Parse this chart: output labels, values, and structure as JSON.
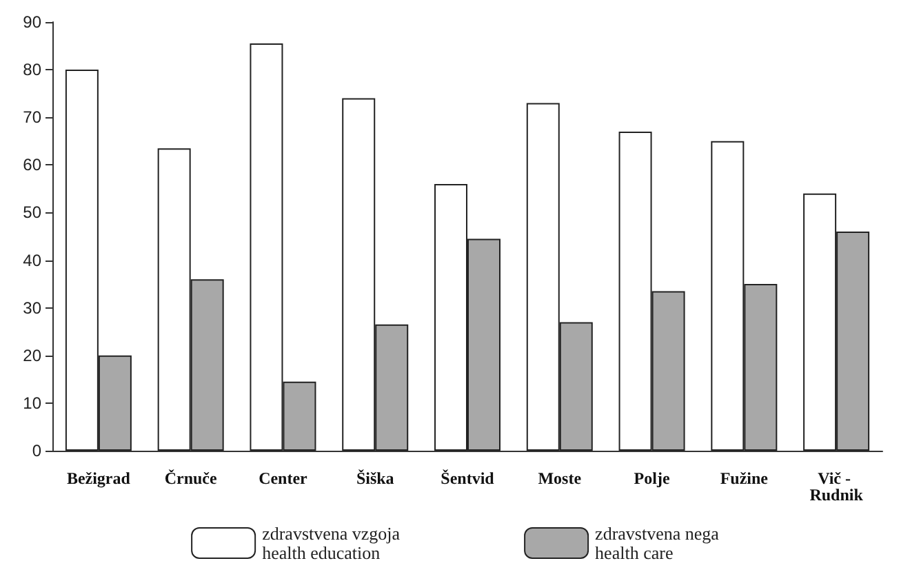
{
  "chart_data": {
    "type": "bar",
    "categories": [
      "Bežigrad",
      "Črnuče",
      "Center",
      "Šiška",
      "Šentvid",
      "Moste",
      "Polje",
      "Fužine",
      "Vič - Rudnik"
    ],
    "series": [
      {
        "name": "zdravstvena vzgoja\nhealth education",
        "color": "#ffffff",
        "values": [
          80,
          63.5,
          85.5,
          74,
          56,
          73,
          67,
          65,
          54
        ]
      },
      {
        "name": "zdravstvena nega\nhealth care",
        "color": "#a8a8a8",
        "values": [
          20,
          36,
          14.5,
          26.5,
          44.5,
          27,
          33.5,
          35,
          46
        ]
      }
    ],
    "ylim": [
      0,
      90
    ],
    "yticks": [
      0,
      10,
      20,
      30,
      40,
      50,
      60,
      70,
      80,
      90
    ],
    "grid": false,
    "legend": "bottom"
  }
}
